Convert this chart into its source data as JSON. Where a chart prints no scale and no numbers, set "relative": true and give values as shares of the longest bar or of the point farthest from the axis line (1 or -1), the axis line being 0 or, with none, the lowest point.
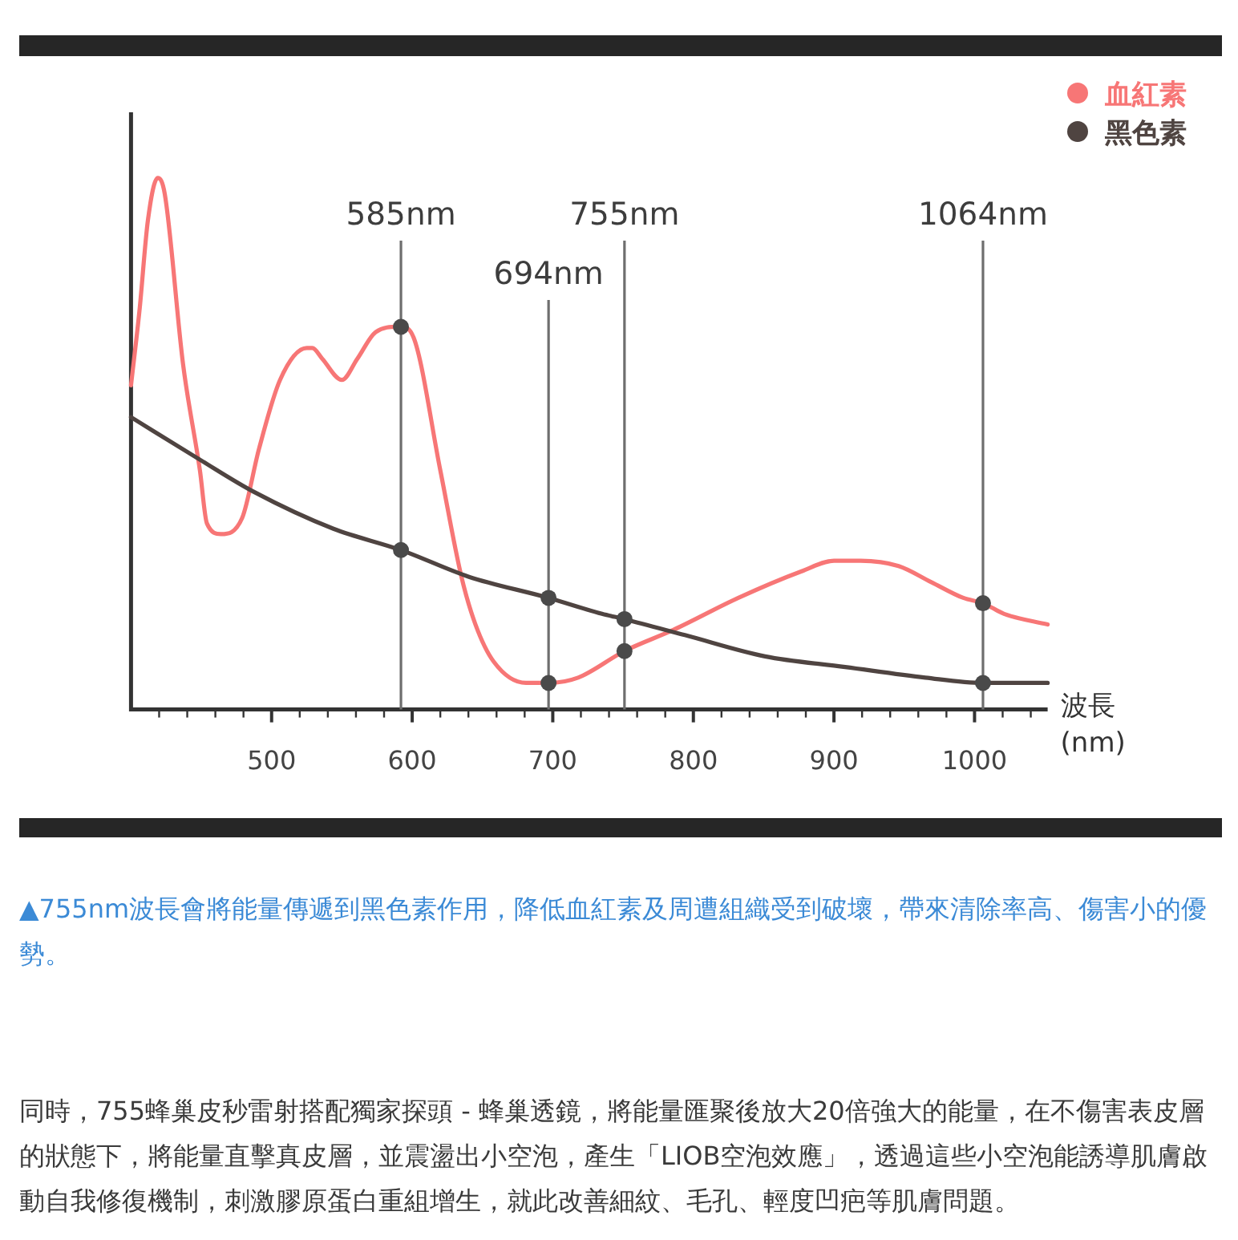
{
  "chart_data": {
    "type": "line",
    "relative": true,
    "series": [
      {
        "name": "血紅素",
        "color": "#f77676",
        "x": [
          400,
          406,
          412,
          419,
          424,
          437,
          449,
          454,
          464,
          479,
          491,
          506,
          525,
          529,
          536,
          550,
          561,
          574,
          590,
          592,
          601,
          620,
          635,
          645,
          658,
          681,
          697,
          718,
          751,
          786,
          832,
          877,
          900,
          919,
          946,
          969,
          992,
          1006,
          1021,
          1052
        ],
        "values": [
          0.61,
          0.75,
          0.92,
          1,
          0.97,
          0.65,
          0.45,
          0.35,
          0.33,
          0.36,
          0.49,
          0.62,
          0.68,
          0.68,
          0.66,
          0.62,
          0.66,
          0.71,
          0.72,
          0.72,
          0.7,
          0.45,
          0.25,
          0.16,
          0.09,
          0.05,
          0.05,
          0.06,
          0.11,
          0.15,
          0.21,
          0.26,
          0.28,
          0.28,
          0.27,
          0.24,
          0.21,
          0.2,
          0.18,
          0.16
        ]
      },
      {
        "name": "黑色素",
        "color": "#4f4441",
        "x": [
          400,
          449,
          487,
          544,
          592,
          640,
          697,
          735,
          751,
          794,
          851,
          908,
          965,
          1006,
          1052
        ],
        "values": [
          0.55,
          0.47,
          0.41,
          0.34,
          0.3,
          0.25,
          0.21,
          0.18,
          0.17,
          0.14,
          0.1,
          0.08,
          0.06,
          0.05,
          0.05
        ]
      },
      {
        "type": "scatter",
        "marker": "circle",
        "color": "#4a4a4a",
        "x": [
          592,
          592,
          697,
          697,
          751,
          751,
          1006,
          1006
        ],
        "values": [
          0.72,
          0.3,
          0.05,
          0.21,
          0.11,
          0.17,
          0.2,
          0.05
        ]
      }
    ],
    "xlim": [
      400,
      1052
    ],
    "xticks": [
      {
        "value": 420,
        "label": null
      },
      {
        "value": 440,
        "label": null
      },
      {
        "value": 460,
        "label": null
      },
      {
        "value": 480,
        "label": null
      },
      500,
      {
        "value": 520,
        "label": null
      },
      {
        "value": 540,
        "label": null
      },
      {
        "value": 560,
        "label": null
      },
      {
        "value": 580,
        "label": null
      },
      600,
      {
        "value": 620,
        "label": null
      },
      {
        "value": 640,
        "label": null
      },
      {
        "value": 660,
        "label": null
      },
      {
        "value": 680,
        "label": null
      },
      700,
      {
        "value": 720,
        "label": null
      },
      {
        "value": 740,
        "label": null
      },
      {
        "value": 760,
        "label": null
      },
      {
        "value": 780,
        "label": null
      },
      800,
      {
        "value": 820,
        "label": null
      },
      {
        "value": 840,
        "label": null
      },
      {
        "value": 860,
        "label": null
      },
      {
        "value": 880,
        "label": null
      },
      900,
      {
        "value": 920,
        "label": null
      },
      {
        "value": 940,
        "label": null
      },
      {
        "value": 960,
        "label": null
      },
      {
        "value": 980,
        "label": null
      },
      1000,
      {
        "value": 1020,
        "label": null
      },
      {
        "value": 1040,
        "label": null
      }
    ],
    "xlabel": "波長\n(nm)",
    "ref_lines": [
      {
        "axis": "x",
        "value": 592,
        "label": "585nm",
        "color": "#6e6e6e"
      },
      {
        "axis": "x",
        "value": 697,
        "label": "694nm",
        "color": "#6e6e6e"
      },
      {
        "axis": "x",
        "value": 751,
        "label": "755nm",
        "color": "#6e6e6e"
      },
      {
        "axis": "x",
        "value": 1006,
        "label": "1064nm",
        "color": "#6e6e6e"
      }
    ],
    "legend": "top right",
    "annotations": [
      "▲755nm波長會將能量傳遞到黑色素作用，降低血紅素及周遭組織受到破壞，帶來清除率高、傷害小的優勢。",
      "同時，755蜂巢皮秒雷射搭配獨家探頭 - 蜂巢透鏡，將能量匯聚後放大20倍強大的能量，在不傷害表皮層的狀態下，將能量直擊真皮層，並震盪出小空泡，產生「LIOB空泡效應」，透過這些小空泡能誘導肌膚啟動自我修復機制，刺激膠原蛋白重組增生，就此改善細紋、毛孔、輕度凹疤等肌膚問題。"
    ]
  }
}
